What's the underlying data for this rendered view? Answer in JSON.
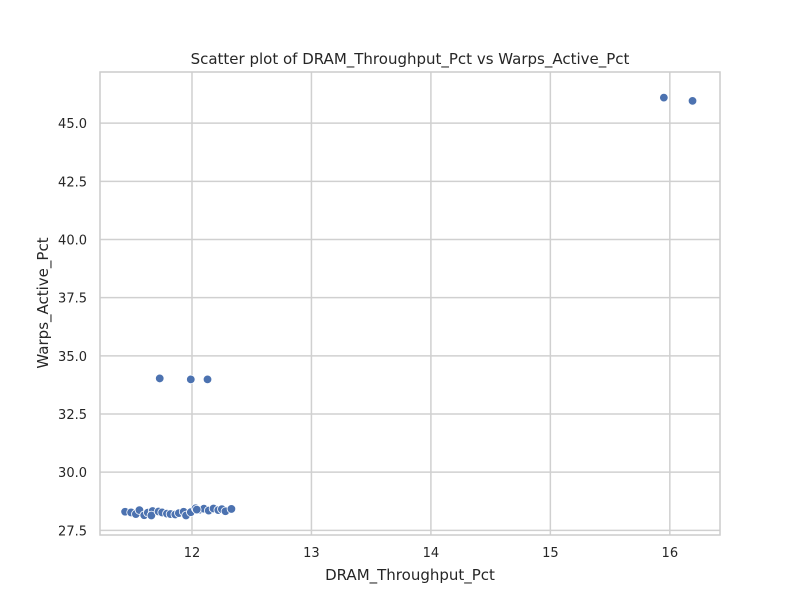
{
  "chart_data": {
    "type": "scatter",
    "title": "Scatter plot of DRAM_Throughput_Pct vs Warps_Active_Pct",
    "xlabel": "DRAM_Throughput_Pct",
    "ylabel": "Warps_Active_Pct",
    "xlim": [
      11.23,
      16.42
    ],
    "ylim": [
      27.3,
      47.2
    ],
    "x_ticks": [
      {
        "value": 12,
        "label": "12"
      },
      {
        "value": 13,
        "label": "13"
      },
      {
        "value": 14,
        "label": "14"
      },
      {
        "value": 15,
        "label": "15"
      },
      {
        "value": 16,
        "label": "16"
      }
    ],
    "y_ticks": [
      {
        "value": 27.5,
        "label": "27.5"
      },
      {
        "value": 30.0,
        "label": "30.0"
      },
      {
        "value": 32.5,
        "label": "32.5"
      },
      {
        "value": 35.0,
        "label": "35.0"
      },
      {
        "value": 37.5,
        "label": "37.5"
      },
      {
        "value": 40.0,
        "label": "40.0"
      },
      {
        "value": 42.5,
        "label": "42.5"
      },
      {
        "value": 45.0,
        "label": "45.0"
      }
    ],
    "grid": true,
    "colors": {
      "point": "#4c72b0",
      "point_edge": "#ffffff",
      "grid": "#d0d0d0",
      "axis": "#cccccc",
      "text": "#262626"
    },
    "points": [
      {
        "x": 11.44,
        "y": 28.3
      },
      {
        "x": 11.49,
        "y": 28.27
      },
      {
        "x": 11.53,
        "y": 28.2
      },
      {
        "x": 11.56,
        "y": 28.37
      },
      {
        "x": 11.6,
        "y": 28.15
      },
      {
        "x": 11.63,
        "y": 28.26
      },
      {
        "x": 11.67,
        "y": 28.33
      },
      {
        "x": 11.66,
        "y": 28.14
      },
      {
        "x": 11.72,
        "y": 28.31
      },
      {
        "x": 11.75,
        "y": 28.27
      },
      {
        "x": 11.79,
        "y": 28.22
      },
      {
        "x": 11.82,
        "y": 28.2
      },
      {
        "x": 11.86,
        "y": 28.18
      },
      {
        "x": 11.89,
        "y": 28.24
      },
      {
        "x": 11.93,
        "y": 28.3
      },
      {
        "x": 11.95,
        "y": 28.14
      },
      {
        "x": 11.99,
        "y": 28.28
      },
      {
        "x": 12.03,
        "y": 28.45
      },
      {
        "x": 12.06,
        "y": 28.38
      },
      {
        "x": 12.1,
        "y": 28.43
      },
      {
        "x": 12.14,
        "y": 28.35
      },
      {
        "x": 12.18,
        "y": 28.44
      },
      {
        "x": 12.22,
        "y": 28.37
      },
      {
        "x": 12.25,
        "y": 28.41
      },
      {
        "x": 12.28,
        "y": 28.32
      },
      {
        "x": 12.33,
        "y": 28.42
      },
      {
        "x": 12.04,
        "y": 28.39
      },
      {
        "x": 11.73,
        "y": 34.03
      },
      {
        "x": 11.99,
        "y": 33.99
      },
      {
        "x": 12.13,
        "y": 33.99
      },
      {
        "x": 15.95,
        "y": 46.1
      },
      {
        "x": 16.19,
        "y": 45.96
      }
    ]
  }
}
